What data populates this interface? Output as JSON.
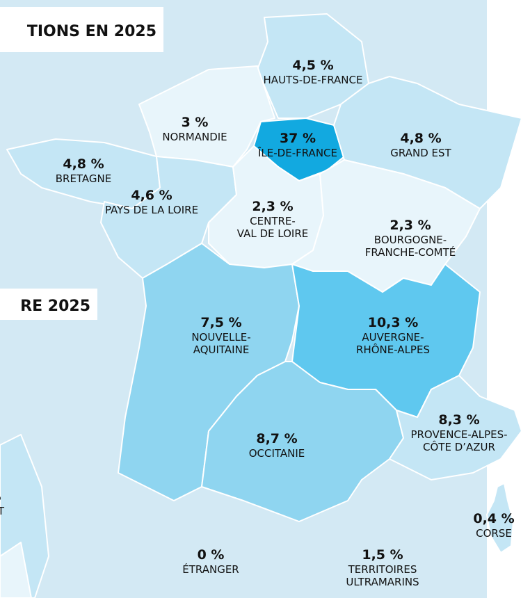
{
  "titles": [
    "TIONS EN 2025",
    "RE 2025"
  ],
  "regions": [
    {
      "share": "4,5 %",
      "name": [
        "HAUTS-DE-FRANCE"
      ]
    },
    {
      "share": "3 %",
      "name": [
        "NORMANDIE"
      ]
    },
    {
      "share": "37 %",
      "name": [
        "ÎLE-DE-FRANCE"
      ]
    },
    {
      "share": "4,8 %",
      "name": [
        "GRAND EST"
      ]
    },
    {
      "share": "4,8 %",
      "name": [
        "BRETAGNE"
      ]
    },
    {
      "share": "4,6 %",
      "name": [
        "PAYS DE LA LOIRE"
      ]
    },
    {
      "share": "2,3 %",
      "name": [
        "CENTRE-",
        "VAL DE LOIRE"
      ]
    },
    {
      "share": "2,3 %",
      "name": [
        "BOURGOGNE-",
        "FRANCHE-COMTÉ"
      ]
    },
    {
      "share": "7,5 %",
      "name": [
        "NOUVELLE-",
        "AQUITAINE"
      ]
    },
    {
      "share": "10,3 %",
      "name": [
        "AUVERGNE-",
        "RHÔNE-ALPES"
      ]
    },
    {
      "share": "8,7 %",
      "name": [
        "OCCITANIE"
      ]
    },
    {
      "share": "8,3 %",
      "name": [
        "PROVENCE-ALPES-",
        "CÔTE D’AZUR"
      ]
    },
    {
      "share": "0,4 %",
      "name": [
        "CORSE"
      ]
    },
    {
      "share": "0 %",
      "name": [
        "ÉTRANGER"
      ]
    },
    {
      "share": "1,5 %",
      "name": [
        "TERRITOIRES",
        "ULTRAMARINS"
      ]
    },
    {
      "share": "%",
      "name": [
        "EST"
      ]
    }
  ]
}
